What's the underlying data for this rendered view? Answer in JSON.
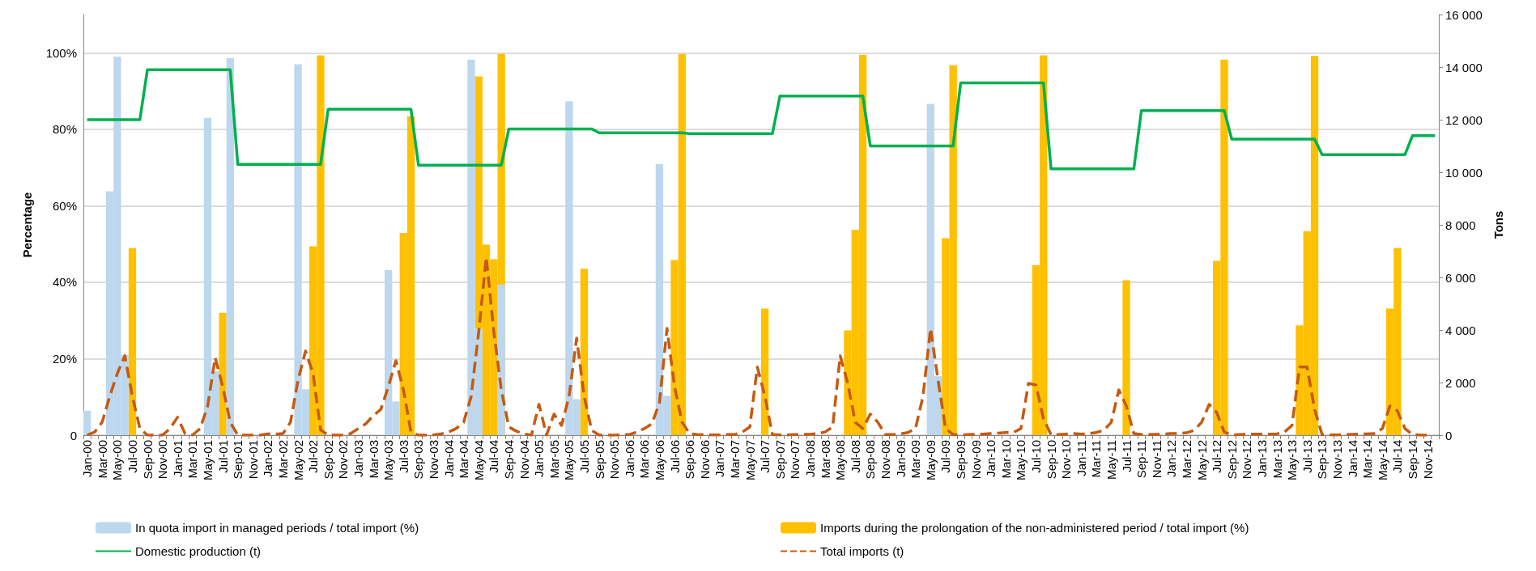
{
  "chart_data": {
    "type": "bar",
    "ylabel": "Percentage",
    "y2label": "Tons",
    "categories": [
      "Jan-00",
      null,
      "Mar-00",
      null,
      "May-00",
      null,
      "Jul-00",
      null,
      "Sep-00",
      null,
      "Nov-00",
      null,
      "Jan-01",
      null,
      "Mar-01",
      null,
      "May-01",
      null,
      "Jul-01",
      null,
      "Sep-01",
      null,
      "Nov-01",
      null,
      "Jan-02",
      null,
      "Mar-02",
      null,
      "May-02",
      null,
      "Jul-02",
      null,
      "Sep-02",
      null,
      "Nov-02",
      null,
      "Jan-03",
      null,
      "Mar-03",
      null,
      "May-03",
      null,
      "Jul-03",
      null,
      "Sep-03",
      null,
      "Nov-03",
      null,
      "Jan-04",
      null,
      "Mar-04",
      null,
      "May-04",
      null,
      "Jul-04",
      null,
      "Sep-04",
      null,
      "Nov-04",
      null,
      "Jan-05",
      null,
      "Mar-05",
      null,
      "May-05",
      null,
      "Jul-05",
      null,
      "Sep-05",
      null,
      "Nov-05",
      null,
      "Jan-06",
      null,
      "Mar-06",
      null,
      "May-06",
      null,
      "Jul-06",
      null,
      "Sep-06",
      null,
      "Nov-06",
      null,
      "Jan-07",
      null,
      "Mar-07",
      null,
      "May-07",
      null,
      "Jul-07",
      null,
      "Sep-07",
      null,
      "Nov-07",
      null,
      "Jan-08",
      null,
      "Mar-08",
      null,
      "May-08",
      null,
      "Jul-08",
      null,
      "Sep-08",
      null,
      "Nov-08",
      null,
      "Jan-09",
      null,
      "Mar-09",
      null,
      "May-09",
      null,
      "Jul-09",
      null,
      "Sep-09",
      null,
      "Nov-09",
      null,
      "Jan-10",
      null,
      "Mar-10",
      null,
      "May-10",
      null,
      "Jul-10",
      null,
      "Sep-10",
      null,
      "Nov-10",
      null,
      "Jan-11",
      null,
      "Mar-11",
      null,
      "May-11",
      null,
      "Jul-11",
      null,
      "Sep-11",
      null,
      "Nov-11",
      null,
      "Jan-12",
      null,
      "Mar-12",
      null,
      "May-12",
      null,
      "Jul-12",
      null,
      "Sep-12",
      null,
      "Nov-12",
      null,
      "Jan-13",
      null,
      "Mar-13",
      null,
      "May-13",
      null,
      "Jul-13",
      null,
      "Sep-13",
      null,
      "Nov-13",
      null,
      "Jan-14",
      null,
      "Mar-14",
      null,
      "May-14",
      null,
      "Jul-14",
      null,
      "Sep-14",
      null,
      "Nov-14",
      null
    ],
    "series": [
      {
        "name": "In quota import in managed periods / total import (%)",
        "color": "#bdd7ee",
        "values": [
          6.4,
          null,
          null,
          63.8,
          99,
          21,
          null,
          null,
          null,
          null,
          null,
          null,
          null,
          null,
          null,
          null,
          83,
          16.7,
          null,
          98.6,
          null,
          null,
          null,
          null,
          null,
          null,
          null,
          null,
          97,
          12,
          null,
          null,
          null,
          null,
          null,
          null,
          null,
          null,
          null,
          null,
          43.2,
          8.8,
          null,
          null,
          null,
          null,
          null,
          null,
          null,
          null,
          null,
          98.2,
          27.9,
          null,
          null,
          39.4,
          null,
          null,
          null,
          null,
          null,
          null,
          null,
          null,
          87.3,
          9.4,
          null,
          null,
          null,
          null,
          null,
          null,
          null,
          null,
          null,
          null,
          70.9,
          10.3,
          null,
          null,
          null,
          null,
          null,
          null,
          null,
          null,
          null,
          null,
          null,
          null,
          null,
          null,
          null,
          null,
          null,
          null,
          null,
          null,
          null,
          null,
          null,
          null,
          null,
          null,
          null,
          null,
          null,
          null,
          null,
          null,
          null,
          null,
          86.6,
          15.4,
          null,
          null,
          null,
          null,
          null,
          null,
          null,
          null,
          null,
          null,
          null,
          null,
          null,
          null,
          null,
          null,
          null,
          null,
          null,
          null,
          null,
          null,
          null,
          null,
          null,
          null,
          null,
          null,
          null,
          null,
          null,
          null,
          null,
          null,
          null,
          null,
          null,
          null,
          null,
          null,
          null,
          null,
          null,
          null,
          null,
          null,
          null,
          null,
          null,
          null,
          null,
          null,
          null,
          null,
          null,
          null,
          null,
          null,
          null,
          null,
          null,
          null,
          null,
          null,
          null,
          null
        ]
      },
      {
        "name": "Imports during the prolongation of the non-administered period / total import (%)",
        "color": "#ffc000",
        "values": [
          null,
          null,
          null,
          null,
          null,
          null,
          48.9,
          null,
          null,
          null,
          null,
          null,
          null,
          null,
          null,
          null,
          null,
          null,
          32,
          null,
          null,
          null,
          null,
          null,
          null,
          null,
          null,
          null,
          null,
          null,
          49.4,
          99.3,
          null,
          null,
          null,
          null,
          null,
          null,
          null,
          null,
          null,
          null,
          52.9,
          83.4,
          null,
          null,
          null,
          null,
          null,
          null,
          null,
          null,
          93.8,
          49.8,
          46,
          99.7,
          null,
          null,
          null,
          null,
          null,
          null,
          null,
          null,
          null,
          null,
          43.5,
          null,
          null,
          null,
          null,
          null,
          null,
          null,
          null,
          null,
          null,
          null,
          45.8,
          99.7,
          null,
          null,
          null,
          null,
          null,
          null,
          null,
          null,
          null,
          null,
          33.1,
          null,
          null,
          null,
          null,
          null,
          null,
          null,
          null,
          null,
          null,
          27.4,
          53.7,
          99.5,
          null,
          null,
          null,
          null,
          null,
          null,
          null,
          null,
          null,
          null,
          51.5,
          96.8,
          null,
          null,
          null,
          null,
          null,
          null,
          null,
          null,
          null,
          null,
          44.5,
          99.3,
          null,
          null,
          null,
          null,
          null,
          null,
          null,
          null,
          null,
          null,
          40.5,
          null,
          null,
          null,
          null,
          null,
          null,
          null,
          null,
          null,
          null,
          null,
          45.6,
          98.2,
          null,
          null,
          null,
          null,
          null,
          null,
          null,
          null,
          null,
          28.7,
          53.3,
          99.2,
          null,
          null,
          null,
          null,
          null,
          null,
          null,
          null,
          null,
          33.1,
          48.9,
          null,
          null,
          null,
          null,
          null
        ]
      },
      {
        "name": "Domestic production (t)",
        "type": "line",
        "axis": "y2",
        "color": "#00b050",
        "line_style": "solid",
        "values": [
          12000,
          12000,
          12000,
          12000,
          12000,
          12000,
          12000,
          12000,
          13900,
          13900,
          13900,
          13900,
          13900,
          13900,
          13900,
          13900,
          13900,
          13900,
          13900,
          13900,
          10300,
          10300,
          10300,
          10300,
          10300,
          10300,
          10300,
          10300,
          10300,
          10300,
          10300,
          10300,
          12400,
          12400,
          12400,
          12400,
          12400,
          12400,
          12400,
          12400,
          12400,
          12400,
          12400,
          12400,
          10270,
          10270,
          10270,
          10270,
          10270,
          10270,
          10270,
          10270,
          10270,
          10270,
          10270,
          10270,
          11650,
          11650,
          11650,
          11650,
          11650,
          11650,
          11650,
          11650,
          11650,
          11650,
          11650,
          11650,
          11500,
          11500,
          11500,
          11500,
          11500,
          11500,
          11500,
          11500,
          11500,
          11500,
          11500,
          11500,
          11470,
          11470,
          11470,
          11470,
          11470,
          11470,
          11470,
          11470,
          11470,
          11470,
          11470,
          11470,
          12900,
          12900,
          12900,
          12900,
          12900,
          12900,
          12900,
          12900,
          12900,
          12900,
          12900,
          12900,
          11000,
          11000,
          11000,
          11000,
          11000,
          11000,
          11000,
          11000,
          11000,
          11000,
          11000,
          11000,
          13400,
          13400,
          13400,
          13400,
          13400,
          13400,
          13400,
          13400,
          13400,
          13400,
          13400,
          13400,
          10130,
          10130,
          10130,
          10130,
          10130,
          10130,
          10130,
          10130,
          10130,
          10130,
          10130,
          10130,
          12350,
          12350,
          12350,
          12350,
          12350,
          12350,
          12350,
          12350,
          12350,
          12350,
          12350,
          12350,
          11260,
          11260,
          11260,
          11260,
          11260,
          11260,
          11260,
          11260,
          11260,
          11260,
          11260,
          11260,
          10670,
          10670,
          10670,
          10670,
          10670,
          10670,
          10670,
          10670,
          10670,
          10670,
          10670,
          10670,
          11390,
          11390,
          11390,
          11390
        ]
      },
      {
        "name": "Total imports (t)",
        "type": "line",
        "axis": "y2",
        "color": "#c55a11",
        "line_style": "dashed",
        "values": [
          0,
          120,
          500,
          1480,
          2340,
          3020,
          1480,
          250,
          0,
          0,
          0,
          250,
          680,
          60,
          0,
          250,
          1100,
          2950,
          1850,
          490,
          0,
          0,
          0,
          0,
          50,
          40,
          60,
          490,
          2090,
          3200,
          2340,
          200,
          0,
          0,
          0,
          60,
          250,
          430,
          740,
          980,
          1850,
          2830,
          1720,
          120,
          0,
          0,
          10,
          50,
          120,
          250,
          490,
          1480,
          3940,
          6770,
          3940,
          1720,
          310,
          150,
          50,
          0,
          1170,
          0,
          800,
          370,
          1480,
          3690,
          1480,
          180,
          0,
          0,
          0,
          10,
          20,
          120,
          250,
          430,
          1230,
          4060,
          1850,
          490,
          60,
          20,
          10,
          10,
          10,
          20,
          20,
          120,
          310,
          2590,
          1480,
          20,
          10,
          10,
          20,
          30,
          30,
          60,
          120,
          310,
          3020,
          1970,
          490,
          250,
          800,
          490,
          20,
          20,
          50,
          100,
          250,
          1480,
          4060,
          2090,
          250,
          20,
          0,
          20,
          30,
          40,
          60,
          80,
          100,
          100,
          250,
          1970,
          1910,
          620,
          20,
          20,
          40,
          60,
          40,
          60,
          100,
          180,
          490,
          1720,
          1110,
          60,
          20,
          20,
          30,
          40,
          60,
          60,
          90,
          180,
          490,
          1170,
          860,
          120,
          0,
          20,
          30,
          40,
          40,
          40,
          50,
          120,
          370,
          2590,
          2590,
          980,
          20,
          10,
          10,
          20,
          30,
          40,
          50,
          60,
          250,
          1110,
          920,
          250,
          20,
          0,
          0,
          null
        ]
      }
    ],
    "ylim": [
      0,
      110
    ],
    "yticks": [
      0,
      {
        "value": 20,
        "label": "20%"
      },
      {
        "value": 40,
        "label": "40%"
      },
      {
        "value": 60,
        "label": "60%"
      },
      {
        "value": 80,
        "label": "80%"
      },
      {
        "value": 100,
        "label": "100%"
      }
    ],
    "y2lim": [
      0,
      16000
    ],
    "y2ticks": [
      0,
      {
        "value": 2000,
        "label": "2 000"
      },
      {
        "value": 4000,
        "label": "4 000"
      },
      {
        "value": 6000,
        "label": "6 000"
      },
      {
        "value": 8000,
        "label": "8 000"
      },
      {
        "value": 10000,
        "label": "10 000"
      },
      {
        "value": 12000,
        "label": "12 000"
      },
      {
        "value": 14000,
        "label": "14 000"
      },
      {
        "value": 16000,
        "label": "16 000"
      }
    ],
    "grid": "y",
    "legend": "bottom",
    "marker": "none"
  }
}
